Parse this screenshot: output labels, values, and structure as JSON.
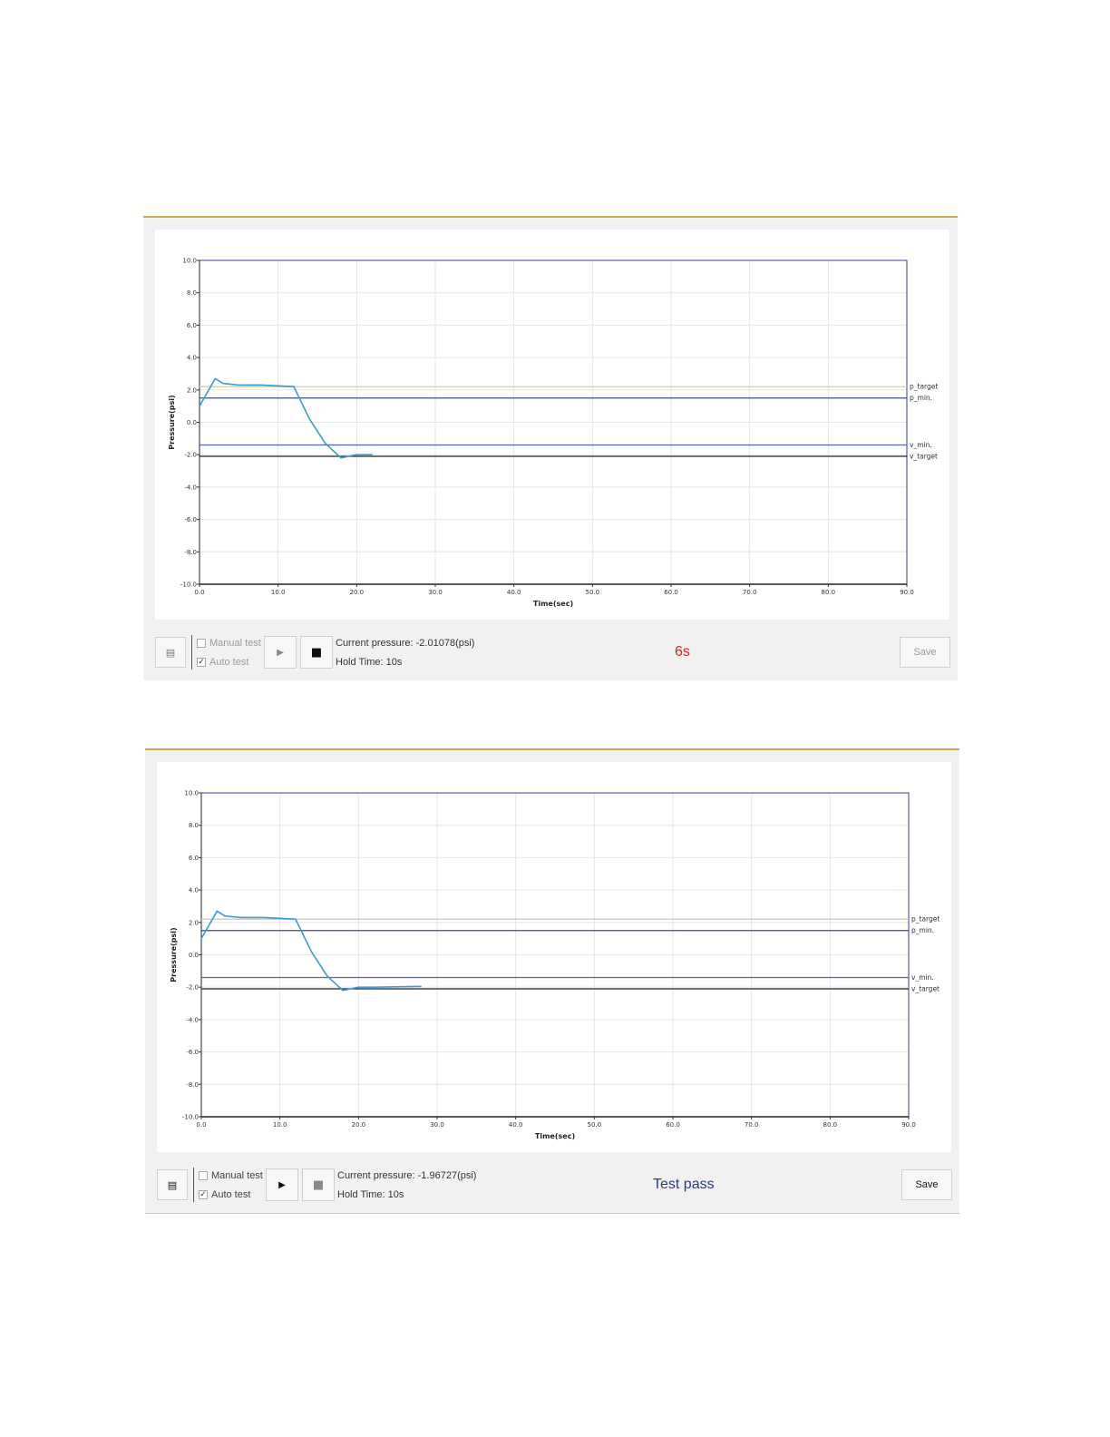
{
  "panels": [
    {
      "controls": {
        "manual_test_label": "Manual test",
        "manual_test_checked": false,
        "auto_test_label": "Auto test",
        "auto_test_checked": true,
        "current_pressure": "Current pressure: -2.01078(psi)",
        "hold_time": "Hold Time: 10s",
        "status_text": "6s",
        "status_color": "#e02020",
        "save_label": "Save"
      },
      "chart_data": {
        "type": "line",
        "title": "",
        "xlabel": "Time(sec)",
        "ylabel": "Pressure(psi)",
        "xlim": [
          0,
          90
        ],
        "ylim": [
          -10,
          10
        ],
        "x_ticks": [
          "0.0",
          "10.0",
          "20.0",
          "30.0",
          "40.0",
          "50.0",
          "60.0",
          "70.0",
          "80.0",
          "90.0"
        ],
        "y_ticks": [
          "10.0",
          "8.0",
          "6.0",
          "4.0",
          "2.0",
          "0.0",
          "-2.0",
          "-4.0",
          "-6.0",
          "-8.0",
          "-10.0"
        ],
        "grid": true,
        "reference_lines": [
          {
            "name": "p_target",
            "y": 2.2,
            "color": "#cfc9a8"
          },
          {
            "name": "p_min.",
            "y": 1.5,
            "color": "#3a4a8c"
          },
          {
            "name": "v_min.",
            "y": -1.4,
            "color": "#5560b0"
          },
          {
            "name": "v_target",
            "y": -2.1,
            "color": "#222222"
          }
        ],
        "series": [
          {
            "color": "#3b9ad6",
            "x": [
              0,
              2,
              3,
              5,
              8,
              12,
              14,
              16,
              18,
              19,
              20,
              22
            ],
            "y": [
              1.0,
              2.7,
              2.4,
              2.3,
              2.3,
              2.2,
              0.2,
              -1.3,
              -2.2,
              -2.1,
              -2.0,
              -2.0
            ]
          }
        ]
      }
    },
    {
      "controls": {
        "manual_test_label": "Manual test",
        "manual_test_checked": false,
        "auto_test_label": "Auto test",
        "auto_test_checked": true,
        "current_pressure": "Current pressure: -1.96727(psi)",
        "hold_time": "Hold Time: 10s",
        "status_text": "Test pass",
        "status_color": "#2a3a8c",
        "save_label": "Save"
      },
      "chart_data": {
        "type": "line",
        "title": "",
        "xlabel": "Time(sec)",
        "ylabel": "Pressure(psi)",
        "xlim": [
          0,
          90
        ],
        "ylim": [
          -10,
          10
        ],
        "x_ticks": [
          "0.0",
          "10.0",
          "20.0",
          "30.0",
          "40.0",
          "50.0",
          "60.0",
          "70.0",
          "80.0",
          "90.0"
        ],
        "y_ticks": [
          "10.0",
          "8.0",
          "6.0",
          "4.0",
          "2.0",
          "0.0",
          "-2.0",
          "-4.0",
          "-6.0",
          "-8.0",
          "-10.0"
        ],
        "grid": true,
        "reference_lines": [
          {
            "name": "p_target",
            "y": 2.2,
            "color": "#cfc9a8"
          },
          {
            "name": "p_min.",
            "y": 1.5,
            "color": "#3a4a8c"
          },
          {
            "name": "v_min.",
            "y": -1.4,
            "color": "#5560b0"
          },
          {
            "name": "v_target",
            "y": -2.1,
            "color": "#222222"
          }
        ],
        "series": [
          {
            "color": "#3b9ad6",
            "x": [
              0,
              2,
              3,
              5,
              8,
              12,
              14,
              16,
              18,
              19,
              20,
              22,
              28
            ],
            "y": [
              1.0,
              2.7,
              2.4,
              2.3,
              2.3,
              2.2,
              0.2,
              -1.3,
              -2.2,
              -2.1,
              -2.0,
              -2.0,
              -1.95
            ]
          }
        ]
      }
    }
  ]
}
